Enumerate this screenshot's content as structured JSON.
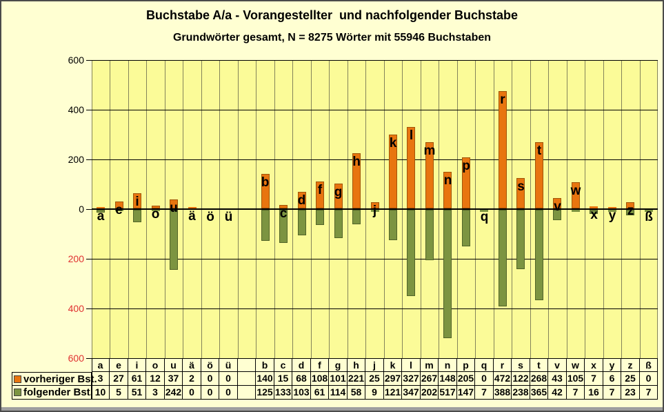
{
  "title": "Buchstabe A/a - Vorangestellter  und nachfolgender Buchstabe",
  "subtitle": "Grundwörter gesamt, N = 8275 Wörter mit 55946 Buchstaben",
  "chart_data": {
    "type": "bar",
    "subtype": "diverging-stacked-vertical",
    "title": "Buchstabe A/a - Vorangestellter  und nachfolgender Buchstabe",
    "subtitle": "Grundwörter gesamt, N = 8275 Wörter mit 55946 Buchstaben",
    "categories": [
      "a",
      "e",
      "i",
      "o",
      "u",
      "ä",
      "ö",
      "ü",
      "",
      "b",
      "c",
      "d",
      "f",
      "g",
      "h",
      "j",
      "k",
      "l",
      "m",
      "n",
      "p",
      "q",
      "r",
      "s",
      "t",
      "v",
      "w",
      "x",
      "y",
      "z",
      "ß"
    ],
    "series": [
      {
        "name": "vorheriger Bst.",
        "direction": "up",
        "color": "#E8750F",
        "border_color": "#A05408",
        "values": [
          3,
          27,
          61,
          12,
          37,
          2,
          0,
          0,
          null,
          140,
          15,
          68,
          108,
          101,
          221,
          25,
          297,
          327,
          267,
          148,
          205,
          0,
          472,
          122,
          268,
          43,
          105,
          7,
          6,
          25,
          0
        ]
      },
      {
        "name": "folgender Bst.",
        "direction": "down",
        "color": "#7C9441",
        "border_color": "#516328",
        "values": [
          10,
          5,
          51,
          3,
          242,
          0,
          0,
          0,
          null,
          125,
          133,
          103,
          61,
          114,
          58,
          9,
          121,
          347,
          202,
          517,
          147,
          7,
          388,
          238,
          365,
          42,
          7,
          16,
          7,
          23,
          7
        ]
      }
    ],
    "ylim": [
      -600,
      600
    ],
    "y_ticks": [
      600,
      400,
      200,
      0,
      -200,
      -400,
      -600
    ],
    "y_tick_labels_shown_as_absolute": true,
    "grid": true,
    "legend_position": "table-row-headers-bottom-left",
    "colors": {
      "page_bg": "#FFFFD2",
      "plot_bg": "#FBFB98",
      "vgrid": "#83835B",
      "hgrid": "#000000",
      "pos_tick_label": "#000000",
      "neg_tick_label": "#E03030",
      "bar_letter_label": "#000000"
    }
  }
}
